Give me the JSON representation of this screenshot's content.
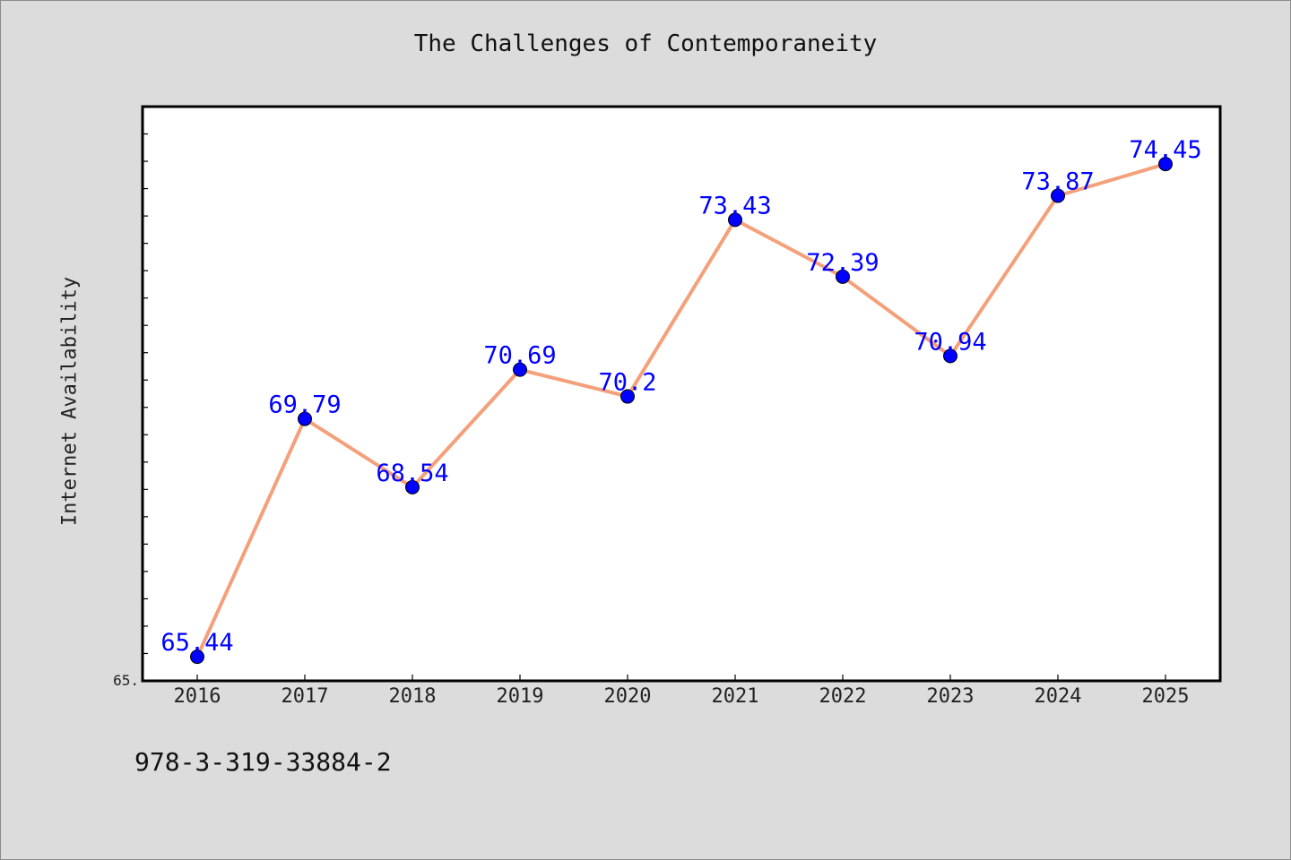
{
  "footer_text": "978-3-319-33884-2",
  "colors": {
    "background": "#dcdcdc",
    "plot_area": "#ffffff",
    "line": "#f4a07a",
    "marker": "#0000ff",
    "data_label": "#0000ff"
  },
  "chart_data": {
    "type": "line",
    "title": "The Challenges of Contemporaneity",
    "xlabel": "",
    "ylabel": "Internet Availability",
    "categories": [
      "2016",
      "2017",
      "2018",
      "2019",
      "2020",
      "2021",
      "2022",
      "2023",
      "2024",
      "2025"
    ],
    "series": [
      {
        "values": [
          65.44,
          69.79,
          68.54,
          70.69,
          70.2,
          73.43,
          72.39,
          70.94,
          73.87,
          74.45
        ],
        "data_labels": [
          "65.44",
          "69.79",
          "68.54",
          "70.69",
          "70.2",
          "73.43",
          "72.39",
          "70.94",
          "73.87",
          "74.45"
        ]
      }
    ],
    "ylim": [
      65.0,
      75.5
    ],
    "y_tick_labels": [
      "65."
    ],
    "grid": false,
    "legend": "none"
  }
}
